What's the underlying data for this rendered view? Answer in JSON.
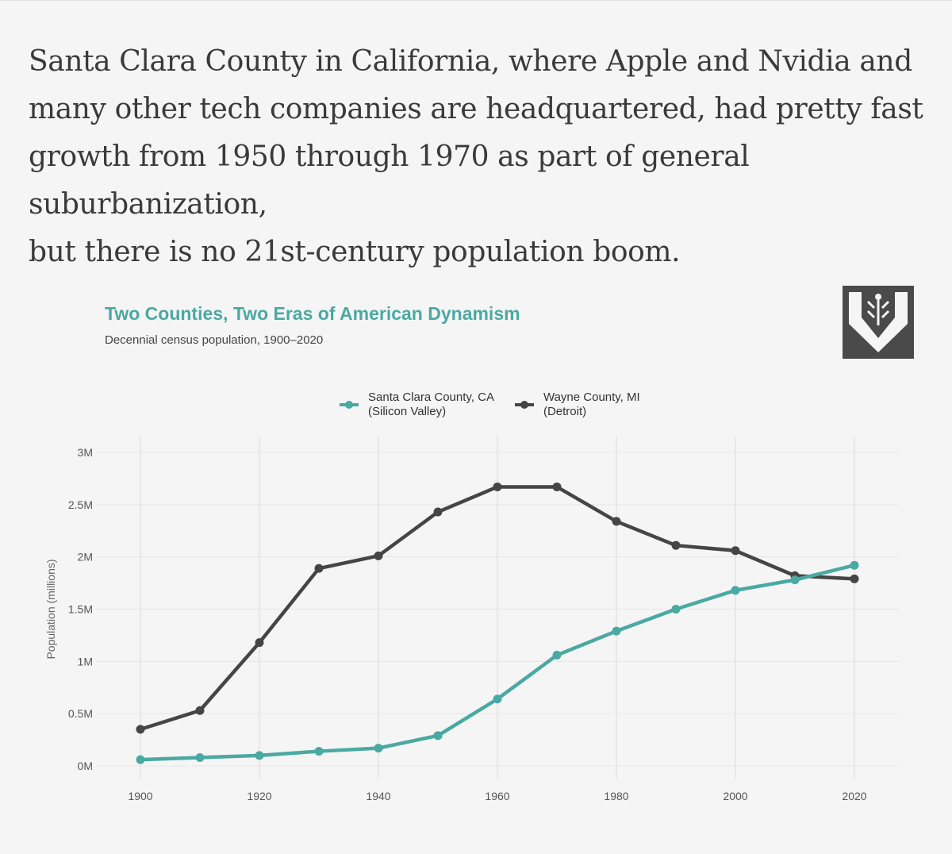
{
  "intro": {
    "lines": [
      "Santa Clara County in California, where Apple and Nvidia and",
      "many other tech companies are headquartered, had pretty fast",
      "growth from 1950 through 1970 as part of general suburbanization,",
      "but there is no 21st-century population boom."
    ]
  },
  "colors": {
    "santa_clara": "#4aa9a2",
    "wayne": "#454545",
    "title": "#4aa9a2",
    "logo": "#4a4a4a"
  },
  "chart_data": {
    "type": "line",
    "title": "Two Counties, Two Eras of American Dynamism",
    "subtitle": "Decennial census population, 1900–2020",
    "xlabel": "",
    "ylabel": "Population (millions)",
    "x": [
      1900,
      1910,
      1920,
      1930,
      1940,
      1950,
      1960,
      1970,
      1980,
      1990,
      2000,
      2010,
      2020
    ],
    "xticks": [
      1900,
      1920,
      1940,
      1960,
      1980,
      2000,
      2020
    ],
    "xtick_labels": [
      "1900",
      "1920",
      "1940",
      "1960",
      "1980",
      "2000",
      "2020"
    ],
    "yticks": [
      0,
      0.5,
      1,
      1.5,
      2,
      2.5,
      3
    ],
    "ytick_labels": [
      "0M",
      "0.5M",
      "1M",
      "1.5M",
      "2M",
      "2.5M",
      "3M"
    ],
    "xlim": [
      1900,
      2020
    ],
    "ylim": [
      0,
      3
    ],
    "grid": true,
    "legend_position": "top-center",
    "series": [
      {
        "name": "Santa Clara County, CA",
        "name_line2": "(Silicon Valley)",
        "values": [
          0.06,
          0.08,
          0.1,
          0.14,
          0.17,
          0.29,
          0.64,
          1.06,
          1.29,
          1.5,
          1.68,
          1.78,
          1.92
        ]
      },
      {
        "name": "Wayne County, MI",
        "name_line2": "(Detroit)",
        "values": [
          0.35,
          0.53,
          1.18,
          1.89,
          2.01,
          2.43,
          2.67,
          2.67,
          2.34,
          2.11,
          2.06,
          1.82,
          1.79
        ]
      }
    ]
  }
}
